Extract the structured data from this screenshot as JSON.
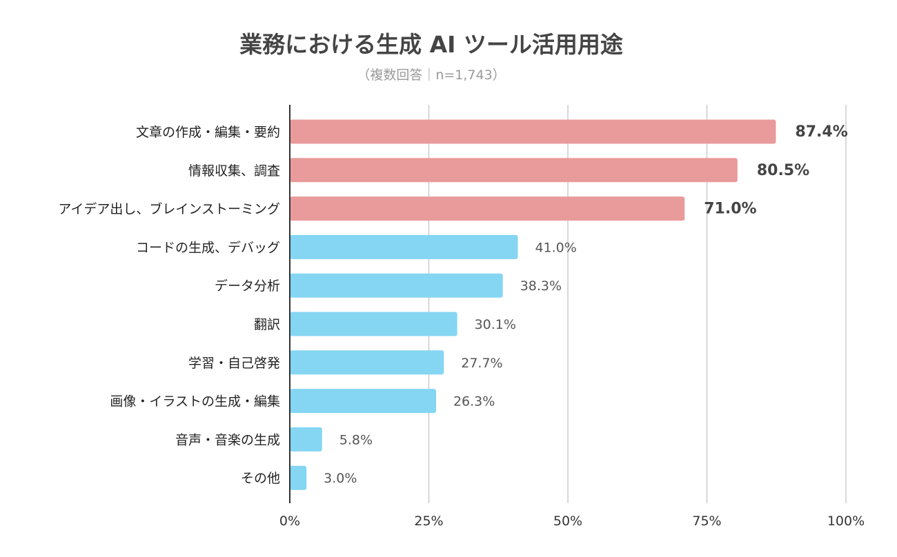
{
  "chart_data": {
    "type": "bar",
    "orientation": "horizontal",
    "title": "業務における生成 AI ツール活用用途",
    "subtitle": "（複数回答｜n=1,743）",
    "categories": [
      "文章の作成・編集・要約",
      "情報収集、調査",
      "アイデア出し、ブレインストーミング",
      "コードの生成、デバッグ",
      "データ分析",
      "翻訳",
      "学習・自己啓発",
      "画像・イラストの生成・編集",
      "音声・音楽の生成",
      "その他"
    ],
    "values": [
      87.4,
      80.5,
      71.0,
      41.0,
      38.3,
      30.1,
      27.7,
      26.3,
      5.8,
      3.0
    ],
    "value_labels": [
      "87.4%",
      "80.5%",
      "71.0%",
      "41.0%",
      "38.3%",
      "30.1%",
      "27.7%",
      "26.3%",
      "5.8%",
      "3.0%"
    ],
    "xlim": [
      0,
      100
    ],
    "xticks": [
      0,
      25,
      50,
      75,
      100
    ],
    "xtick_labels": [
      "0%",
      "25%",
      "50%",
      "75%",
      "100%"
    ],
    "grid": true,
    "colors": {
      "highlight": "#e99a9a",
      "normal": "#84d6f3"
    },
    "highlight_top_n": 3
  }
}
